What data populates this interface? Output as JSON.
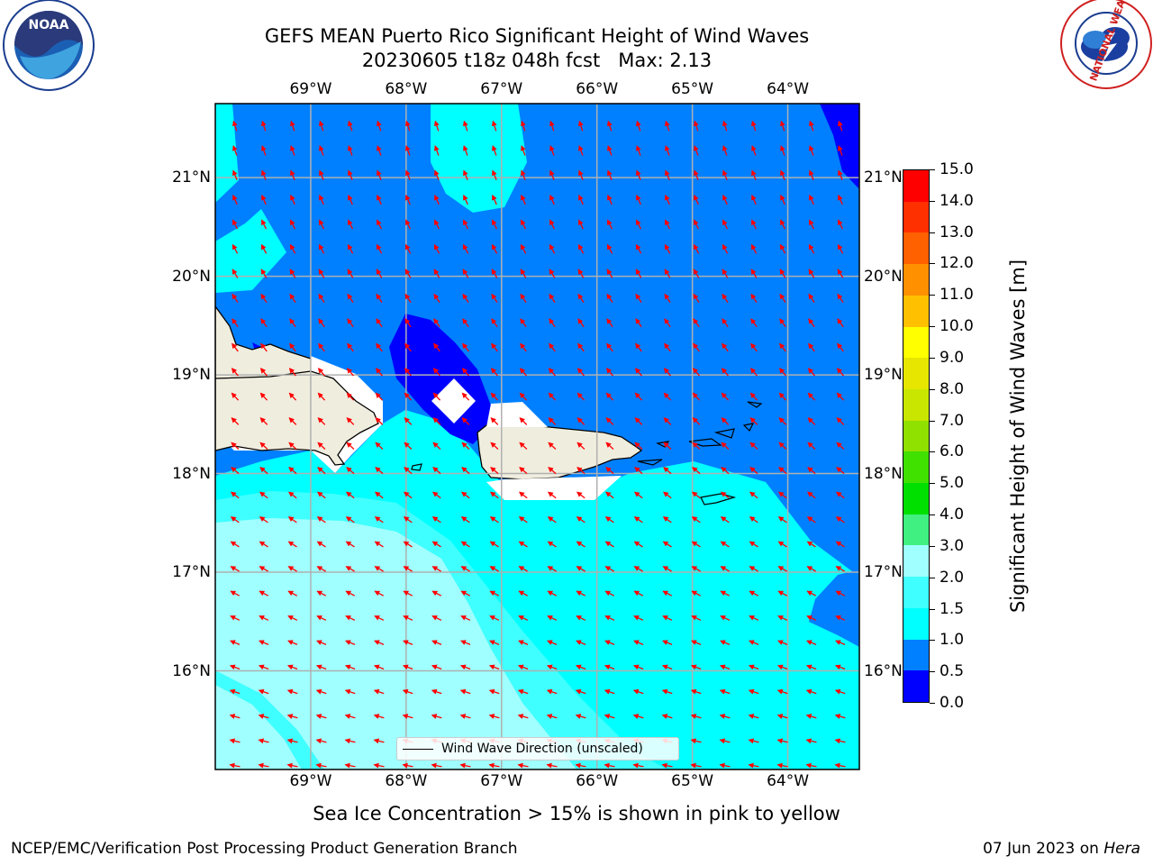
{
  "title": {
    "line1": "GEFS MEAN Puerto Rico Significant Height of Wind Waves",
    "line2": "20230605 t18z 048h fcst   Max: 2.13"
  },
  "map": {
    "lon_labels": [
      "69°W",
      "68°W",
      "67°W",
      "66°W",
      "65°W",
      "64°W"
    ],
    "lat_labels": [
      "21°N",
      "20°N",
      "19°N",
      "18°N",
      "17°N",
      "16°N"
    ],
    "extent": {
      "lon_min": -70.0,
      "lon_max": -63.25,
      "lat_min": 15.0,
      "lat_max": 21.75
    },
    "arrow_color": "#ff0000",
    "land_color": "#efedde",
    "grid_color": "#b0b0b0"
  },
  "colorbar": {
    "label": "Significant Height of Wind Waves [m]",
    "ticks": [
      "0.0",
      "0.5",
      "1.0",
      "1.5",
      "2.0",
      "3.0",
      "4.0",
      "5.0",
      "6.0",
      "7.0",
      "8.0",
      "9.0",
      "10.0",
      "11.0",
      "12.0",
      "13.0",
      "14.0",
      "15.0"
    ],
    "colors": [
      "#0000ff",
      "#0080ff",
      "#00ffff",
      "#40ffff",
      "#a0ffff",
      "#40f080",
      "#00e000",
      "#40e000",
      "#90e000",
      "#c8e600",
      "#e6e600",
      "#ffff00",
      "#ffc000",
      "#ff9000",
      "#ff6000",
      "#ff3000",
      "#ff0000"
    ]
  },
  "legend": {
    "label": "Wind Wave Direction (unscaled)"
  },
  "subtitle": "Sea Ice Concentration > 15% is shown in pink to yellow",
  "footer": {
    "left": "NCEP/EMC/Verification Post Processing Product Generation Branch",
    "right_date": "07 Jun 2023 on ",
    "right_host": "Hera"
  },
  "logos": {
    "left_text": "NOAA",
    "right_text": "NATIONAL WEATHER SERVICE"
  }
}
